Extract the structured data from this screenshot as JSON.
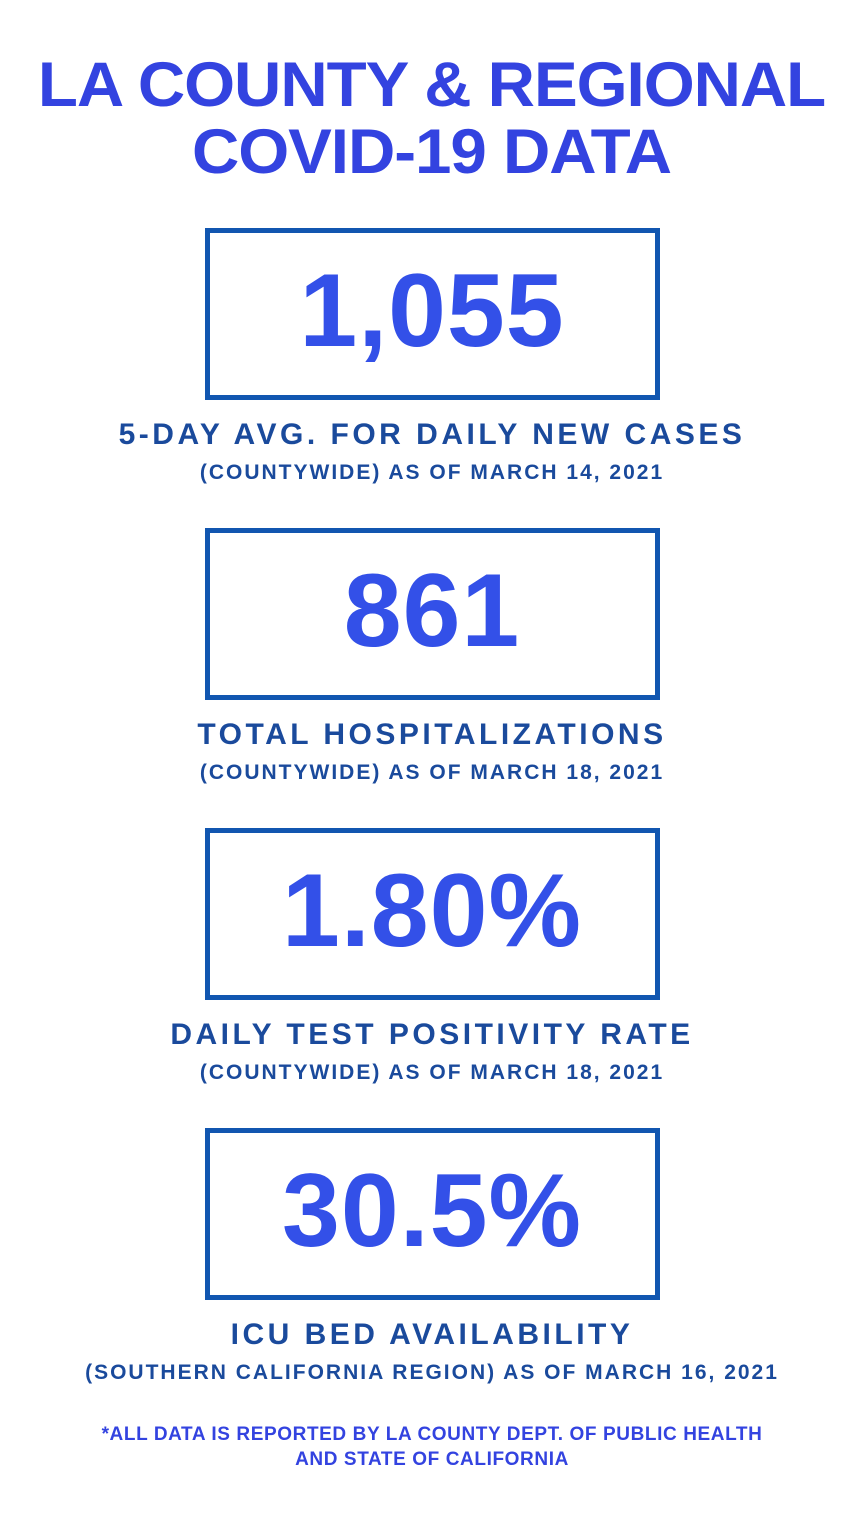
{
  "page": {
    "title_line1": "LA COUNTY & REGIONAL",
    "title_line2": "COVID-19 DATA",
    "footer_line1": "*ALL DATA IS REPORTED BY LA COUNTY DEPT. OF PUBLIC HEALTH",
    "footer_line2": "AND STATE OF CALIFORNIA"
  },
  "colors": {
    "accent": "#3343E0",
    "value": "#3350E8",
    "label": "#1A4A9C",
    "border": "#1156B0",
    "background": "#FFFFFF"
  },
  "stats": [
    {
      "value": "1,055",
      "label": "5-DAY AVG. FOR DAILY NEW CASES",
      "detail": "(COUNTYWIDE) AS OF MARCH 14, 2021"
    },
    {
      "value": "861",
      "label": "TOTAL HOSPITALIZATIONS",
      "detail": "(COUNTYWIDE) AS OF MARCH 18, 2021"
    },
    {
      "value": "1.80%",
      "label": "DAILY TEST POSITIVITY RATE",
      "detail": "(COUNTYWIDE) AS OF MARCH 18, 2021"
    },
    {
      "value": "30.5%",
      "label": "ICU BED AVAILABILITY",
      "detail": "(SOUTHERN CALIFORNIA REGION) AS OF MARCH 16, 2021"
    }
  ]
}
